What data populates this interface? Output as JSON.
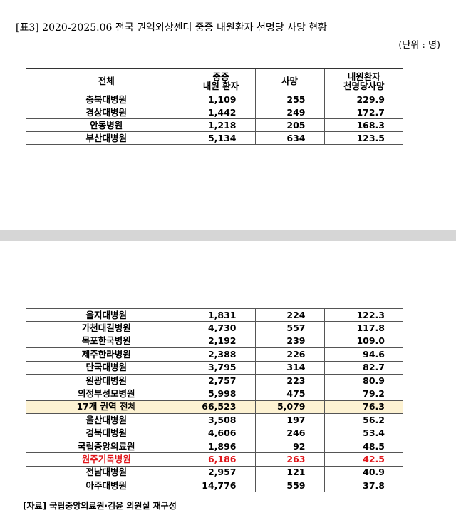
{
  "title": "[표3] 2020-2025.06 전국 권역외상센터 중증 내원환자 천명당 사망 현황",
  "unit": "(단위 : 명)",
  "table1": {
    "header": [
      [
        "전체"
      ],
      [
        "중증",
        "내원 환자"
      ],
      [
        "사망"
      ],
      [
        "내원환자",
        "천명당사망"
      ]
    ],
    "rows": [
      [
        "충북대병원",
        "1,109",
        "255",
        "229.9"
      ],
      [
        "경상대병원",
        "1,442",
        "249",
        "172.7"
      ],
      [
        "안동병원",
        "1,218",
        "205",
        "168.3"
      ],
      [
        "부산대병원",
        "5,134",
        "634",
        "123.5"
      ]
    ]
  },
  "table2": {
    "rows": [
      [
        "을지대병원",
        "1,831",
        "224",
        "122.3"
      ],
      [
        "가천대길병원",
        "4,730",
        "557",
        "117.8"
      ],
      [
        "목포한국병원",
        "2,192",
        "239",
        "109.0"
      ],
      [
        "제주한라병원",
        "2,388",
        "226",
        "94.6"
      ],
      [
        "단국대병원",
        "3,795",
        "314",
        "82.7"
      ],
      [
        "원광대병원",
        "2,757",
        "223",
        "80.9"
      ],
      [
        "의정부성모병원",
        "5,998",
        "475",
        "79.2"
      ],
      [
        "17개 권역 전체",
        "66,523",
        "5,079",
        "76.3"
      ],
      [
        "울산대병원",
        "3,508",
        "197",
        "56.2"
      ],
      [
        "경북대병원",
        "4,606",
        "246",
        "53.4"
      ],
      [
        "국립중앙의료원",
        "1,896",
        "92",
        "48.5"
      ],
      [
        "원주기독병원",
        "6,186",
        "263",
        "42.5"
      ],
      [
        "전남대병원",
        "2,957",
        "121",
        "40.9"
      ],
      [
        "아주대병원",
        "14,776",
        "559",
        "37.8"
      ]
    ]
  },
  "source": "[자료] 국립중앙의료원·김윤 의원실 재구성"
}
